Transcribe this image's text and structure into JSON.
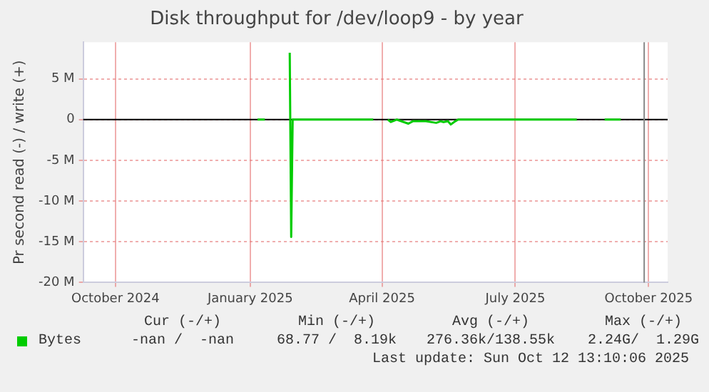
{
  "chart_data": {
    "type": "line",
    "title": "Disk throughput for /dev/loop9 - by year",
    "ylabel": "Pr second read (-) / write (+)",
    "xlim": [
      "2024-09-24",
      "2025-10-28"
    ],
    "xticks": [
      {
        "value": "2024-10-16",
        "label": "October 2024"
      },
      {
        "value": "2025-01-16",
        "label": "January 2025"
      },
      {
        "value": "2025-04-16",
        "label": "April 2025"
      },
      {
        "value": "2025-07-16",
        "label": "July 2025"
      },
      {
        "value": "2025-10-15",
        "label": "October 2025"
      }
    ],
    "ylim": [
      -20000000,
      9500000
    ],
    "yticks": [
      {
        "value": 5000000,
        "label": "5 M"
      },
      0,
      {
        "value": -5000000,
        "label": "-5 M"
      },
      {
        "value": -10000000,
        "label": "-10 M"
      },
      {
        "value": -15000000,
        "label": "-15 M"
      },
      {
        "value": -20000000,
        "label": "-20 M"
      }
    ],
    "series": [
      {
        "name": "Bytes",
        "color": "#00cc00",
        "x": [
          "2025-01-21",
          "2025-01-26",
          "2025-02-01",
          "2025-02-12",
          "2025-02-13",
          "2025-02-14",
          "2025-04-10",
          "2025-04-15",
          "2025-04-20",
          "2025-04-22",
          "2025-04-26",
          "2025-05-04",
          "2025-05-07",
          "2025-05-16",
          "2025-05-23",
          "2025-05-26",
          "2025-05-28",
          "2025-05-31",
          "2025-06-02",
          "2025-06-05",
          "2025-06-07",
          "2025-08-27",
          "2025-09-05",
          "2025-09-15",
          "2025-09-26"
        ],
        "values": [
          0,
          0,
          null,
          8200000,
          -14400000,
          0,
          0,
          null,
          0,
          -300000,
          0,
          -500000,
          -200000,
          -200000,
          -400000,
          -200000,
          -300000,
          -200000,
          -600000,
          -200000,
          0,
          0,
          null,
          0,
          0
        ]
      }
    ],
    "ref_lines": [
      {
        "axis": "y",
        "value": 0,
        "color": "#000000"
      },
      {
        "axis": "x",
        "value": "2025-10-12",
        "color": "#888888"
      }
    ],
    "grid": true,
    "legend": "bottom left",
    "marker": "none",
    "line_style": "solid",
    "annotations": [
      "Cur (-/+)",
      "Min (-/+)",
      "Avg (-/+)",
      "Max (-/+)",
      "-nan /  -nan",
      "68.77 /  8.19k",
      "276.36k/138.55k",
      "2.24G/  1.29G",
      "Last update: Sun Oct 12 13:10:06 2025"
    ]
  }
}
